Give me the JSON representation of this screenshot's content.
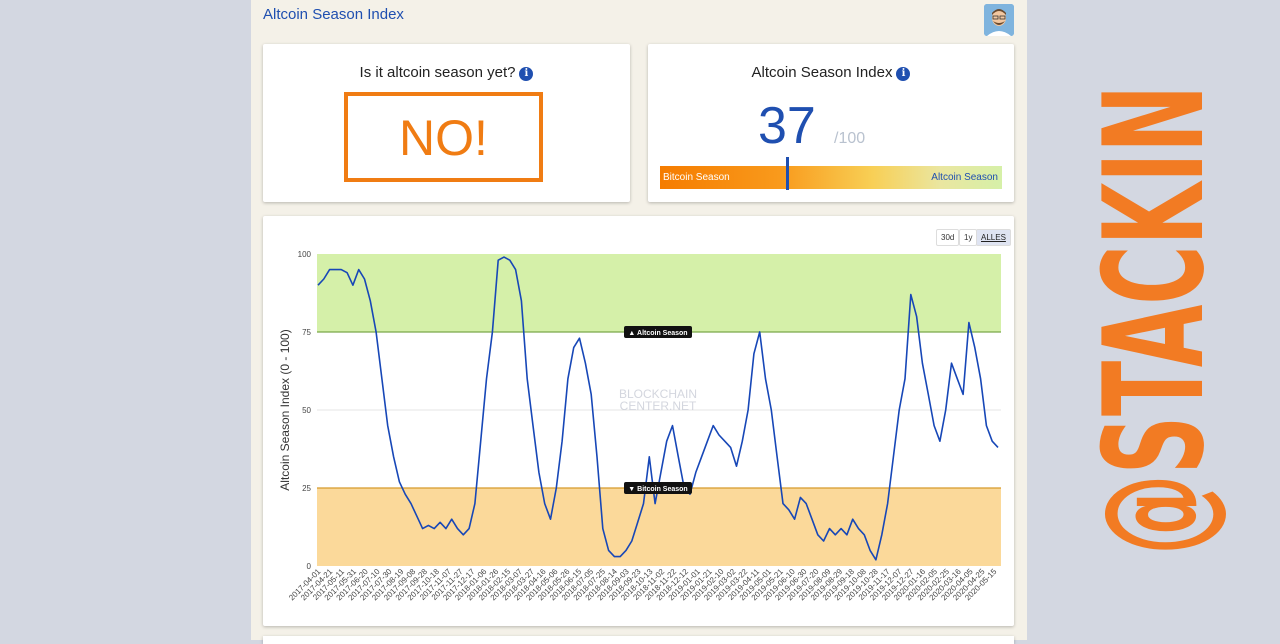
{
  "header": {
    "title": "Altcoin Season Index"
  },
  "status_card": {
    "title": "Is it altcoin season yet?",
    "answer": "NO!"
  },
  "index_card": {
    "title": "Altcoin Season Index",
    "value": "37",
    "max": "/100",
    "gauge_fraction": 0.37,
    "gauge_left_label": "Bitcoin Season",
    "gauge_right_label": "Altcoin Season"
  },
  "range_buttons": [
    {
      "label": "30d",
      "active": false
    },
    {
      "label": "1y",
      "active": false
    },
    {
      "label": "ALLES",
      "active": true
    }
  ],
  "watermark": {
    "text": "@STACKIN",
    "color": "#f27b23"
  },
  "colors": {
    "series": "#1747b7",
    "altcoin_zone": "#d5f0a9",
    "bitcoin_zone": "#fbd99a",
    "accent": "#f07c13",
    "link": "#1f4fb0"
  },
  "chart_data": {
    "type": "line",
    "ylabel": "Altcoin Season Index (0 - 100)",
    "xlabel": "",
    "ylim": [
      0,
      100
    ],
    "yticks": [
      0,
      25,
      50,
      75,
      100
    ],
    "x_tick_labels": [
      "2017-04-01",
      "2017-04-21",
      "2017-05-11",
      "2017-05-31",
      "2017-06-20",
      "2017-07-10",
      "2017-07-30",
      "2017-08-19",
      "2017-09-08",
      "2017-09-28",
      "2017-10-18",
      "2017-11-07",
      "2017-11-27",
      "2017-12-17",
      "2018-01-06",
      "2018-01-26",
      "2018-02-15",
      "2018-03-07",
      "2018-03-27",
      "2018-04-16",
      "2018-05-06",
      "2018-05-26",
      "2018-06-15",
      "2018-07-05",
      "2018-07-25",
      "2018-08-14",
      "2018-09-03",
      "2018-09-23",
      "2018-10-13",
      "2018-11-02",
      "2018-11-22",
      "2018-12-12",
      "2019-01-01",
      "2019-01-21",
      "2019-02-10",
      "2019-03-02",
      "2019-03-22",
      "2019-04-11",
      "2019-05-01",
      "2019-05-21",
      "2019-06-10",
      "2019-06-30",
      "2019-07-20",
      "2019-08-09",
      "2019-08-29",
      "2019-09-18",
      "2019-10-08",
      "2019-10-28",
      "2019-11-17",
      "2019-12-07",
      "2019-12-27",
      "2020-01-16",
      "2020-02-05",
      "2020-02-25",
      "2020-03-16",
      "2020-04-05",
      "2020-04-25",
      "2020-05-15"
    ],
    "reference_lines": [
      {
        "y": 75,
        "label": "▲ Altcoin Season"
      },
      {
        "y": 25,
        "label": "▼ Bitcoin Season"
      }
    ],
    "zones": [
      {
        "from": 75,
        "to": 100,
        "name": "Altcoin Season"
      },
      {
        "from": 0,
        "to": 25,
        "name": "Bitcoin Season"
      }
    ],
    "watermark_lines": [
      "BLOCKCHAIN",
      "CENTER.NET"
    ],
    "series": [
      {
        "values": [
          90,
          92,
          95,
          95,
          95,
          94,
          90,
          95,
          92,
          85,
          75,
          60,
          45,
          35,
          27,
          23,
          20,
          16,
          12,
          13,
          12,
          14,
          12,
          15,
          12,
          10,
          12,
          20,
          40,
          60,
          75,
          98,
          99,
          98,
          95,
          85,
          60,
          45,
          30,
          20,
          15,
          25,
          40,
          60,
          70,
          73,
          65,
          55,
          35,
          12,
          5,
          3,
          3,
          5,
          8,
          14,
          20,
          35,
          20,
          30,
          40,
          45,
          35,
          25,
          23,
          30,
          35,
          40,
          45,
          42,
          40,
          38,
          32,
          40,
          50,
          68,
          75,
          60,
          50,
          35,
          20,
          18,
          15,
          22,
          20,
          15,
          10,
          8,
          12,
          10,
          12,
          10,
          15,
          12,
          10,
          5,
          2,
          10,
          20,
          35,
          50,
          60,
          87,
          80,
          65,
          55,
          45,
          40,
          50,
          65,
          60,
          55,
          78,
          70,
          60,
          45,
          40,
          38
        ]
      }
    ]
  }
}
